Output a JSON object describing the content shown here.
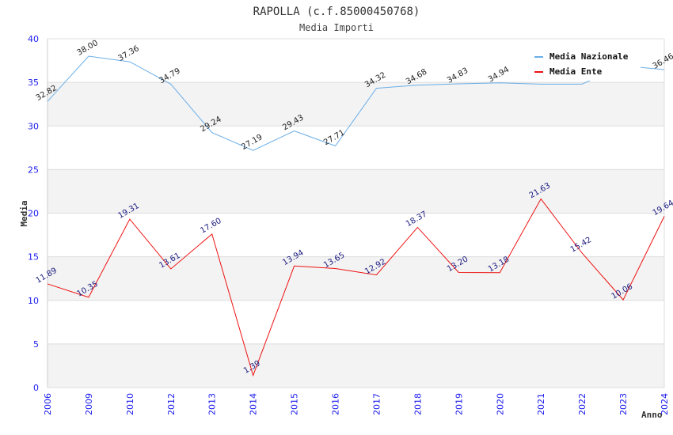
{
  "chart_data": {
    "type": "line",
    "title": "RAPOLLA (c.f.85000450768)",
    "subtitle": "Media Importi",
    "xlabel": "Anno",
    "ylabel": "Media",
    "ylim": [
      0,
      40
    ],
    "yticks": [
      0,
      5,
      10,
      15,
      20,
      25,
      30,
      35,
      40
    ],
    "grid": true,
    "legend_position": "top-right",
    "categories": [
      "2006",
      "2009",
      "2010",
      "2012",
      "2013",
      "2014",
      "2015",
      "2016",
      "2017",
      "2018",
      "2019",
      "2020",
      "2021",
      "2022",
      "2023",
      "2024"
    ],
    "series": [
      {
        "name": "Media Nazionale",
        "color": "#6aaee8",
        "label_color": "#222222",
        "values": [
          32.82,
          38.0,
          37.36,
          34.79,
          29.24,
          27.19,
          29.43,
          27.71,
          34.32,
          34.68,
          34.83,
          34.94,
          34.8,
          34.8,
          36.9,
          36.46
        ],
        "labels": [
          "32.82",
          "38.00",
          "37.36",
          "34.79",
          "29.24",
          "27.19",
          "29.43",
          "27.71",
          "34.32",
          "34.68",
          "34.83",
          "34.94",
          "",
          "",
          "",
          "36.46"
        ]
      },
      {
        "name": "Media Ente",
        "color": "#ee1111",
        "label_color": "#1a1a80",
        "values": [
          11.89,
          10.35,
          19.31,
          13.61,
          17.6,
          1.39,
          13.94,
          13.65,
          12.92,
          18.37,
          13.2,
          13.18,
          21.63,
          15.42,
          10.06,
          19.64
        ],
        "labels": [
          "11.89",
          "10.35",
          "19.31",
          "13.61",
          "17.60",
          "1.39",
          "13.94",
          "13.65",
          "12.92",
          "18.37",
          "13.20",
          "13.18",
          "21.63",
          "15.42",
          "10.06",
          "19.64"
        ]
      }
    ]
  }
}
